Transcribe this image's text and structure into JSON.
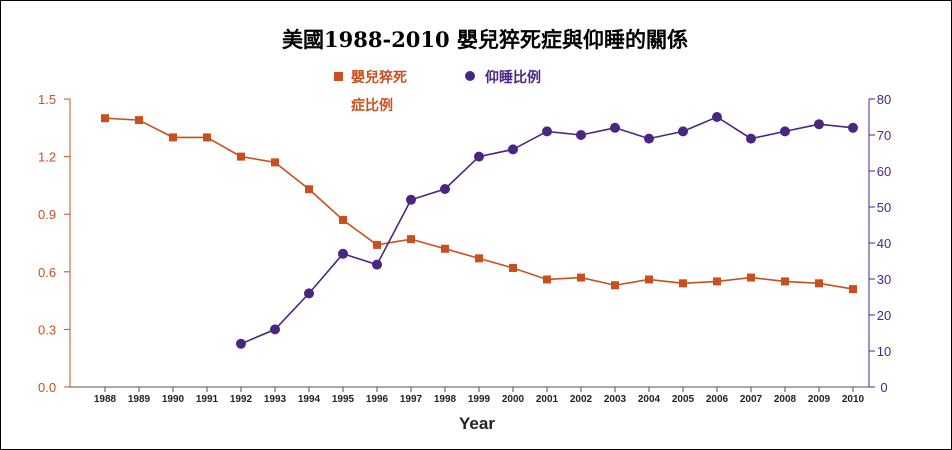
{
  "chart_data": {
    "type": "line",
    "title": "美國1988-2010  嬰兒猝死症與仰睡的關係",
    "xlabel": "Year",
    "categories": [
      "1988",
      "1989",
      "1990",
      "1991",
      "1992",
      "1993",
      "1994",
      "1995",
      "1996",
      "1997",
      "1998",
      "1999",
      "2000",
      "2001",
      "2002",
      "2003",
      "2004",
      "2005",
      "2006",
      "2007",
      "2008",
      "2009",
      "2010"
    ],
    "left_axis": {
      "range": [
        0,
        1.5
      ],
      "ticks": [
        "0.0",
        "0.3",
        "0.6",
        "0.9",
        "1.2",
        "1.5"
      ],
      "color": "#c8501e"
    },
    "right_axis": {
      "range": [
        0,
        80
      ],
      "ticks": [
        "0",
        "10",
        "20",
        "30",
        "40",
        "50",
        "60",
        "70",
        "80"
      ],
      "color": "#4b2582"
    },
    "series": [
      {
        "name": "嬰兒猝死症比例",
        "legend_lines": [
          "嬰兒猝死",
          "症比例"
        ],
        "axis": "left",
        "marker": "square",
        "color": "#c8501e",
        "values": [
          1.4,
          1.39,
          1.3,
          1.3,
          1.2,
          1.17,
          1.03,
          0.87,
          0.74,
          0.77,
          0.72,
          0.67,
          0.62,
          0.56,
          0.57,
          0.53,
          0.56,
          0.54,
          0.55,
          0.57,
          0.55,
          0.54,
          0.51
        ]
      },
      {
        "name": "仰睡比例",
        "legend_lines": [
          "仰睡比例"
        ],
        "axis": "right",
        "marker": "circle",
        "color": "#4b2582",
        "values": [
          null,
          null,
          null,
          null,
          12,
          16,
          26,
          37,
          34,
          52,
          55,
          64,
          66,
          71,
          70,
          72,
          69,
          71,
          75,
          69,
          71,
          73,
          72
        ]
      }
    ]
  }
}
